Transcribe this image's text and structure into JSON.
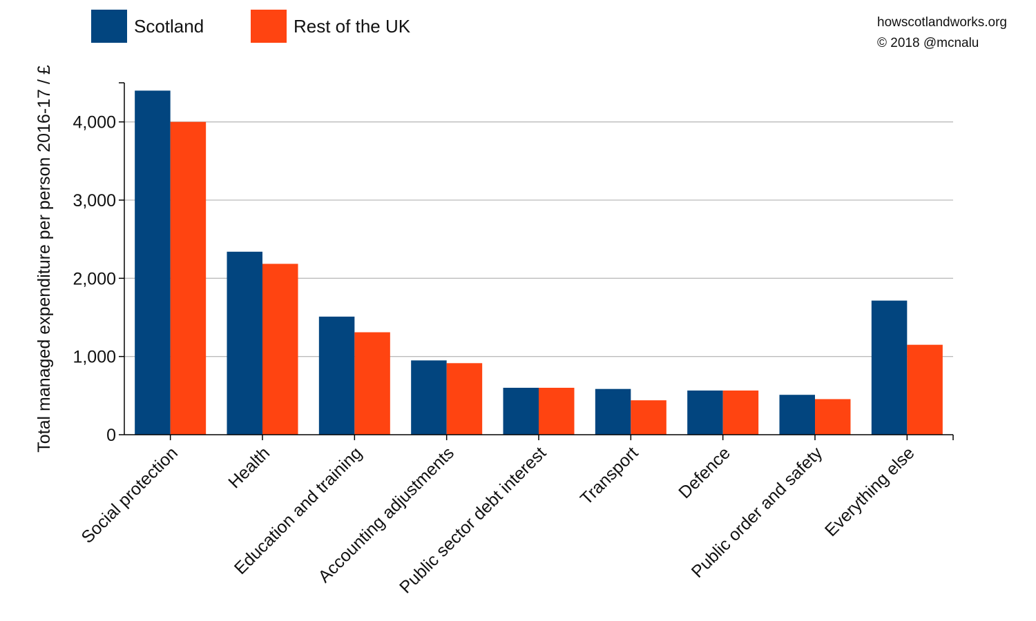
{
  "credits": {
    "site": "howscotlandworks.org",
    "copyright": "© 2018  @mcnalu"
  },
  "chart_data": {
    "type": "bar",
    "title": "",
    "xlabel": "",
    "ylabel": "Total managed expenditure per person 2016-17 / £",
    "ylim": [
      0,
      4500
    ],
    "yticks": [
      0,
      1000,
      2000,
      3000,
      4000
    ],
    "ytick_labels": [
      "0",
      "1,000",
      "2,000",
      "3,000",
      "4,000"
    ],
    "grid": "horizontal",
    "legend_position": "top-left",
    "categories": [
      "Social protection",
      "Health",
      "Education and training",
      "Accounting adjustments",
      "Public sector debt interest",
      "Transport",
      "Defence",
      "Public order and safety",
      "Everything else"
    ],
    "series": [
      {
        "name": "Scotland",
        "color": "#02457f",
        "values": [
          4400,
          2340,
          1510,
          950,
          600,
          585,
          565,
          510,
          1715
        ]
      },
      {
        "name": "Rest of the UK",
        "color": "#ff4411",
        "values": [
          4000,
          2185,
          1310,
          915,
          600,
          440,
          565,
          455,
          1150
        ]
      }
    ]
  }
}
